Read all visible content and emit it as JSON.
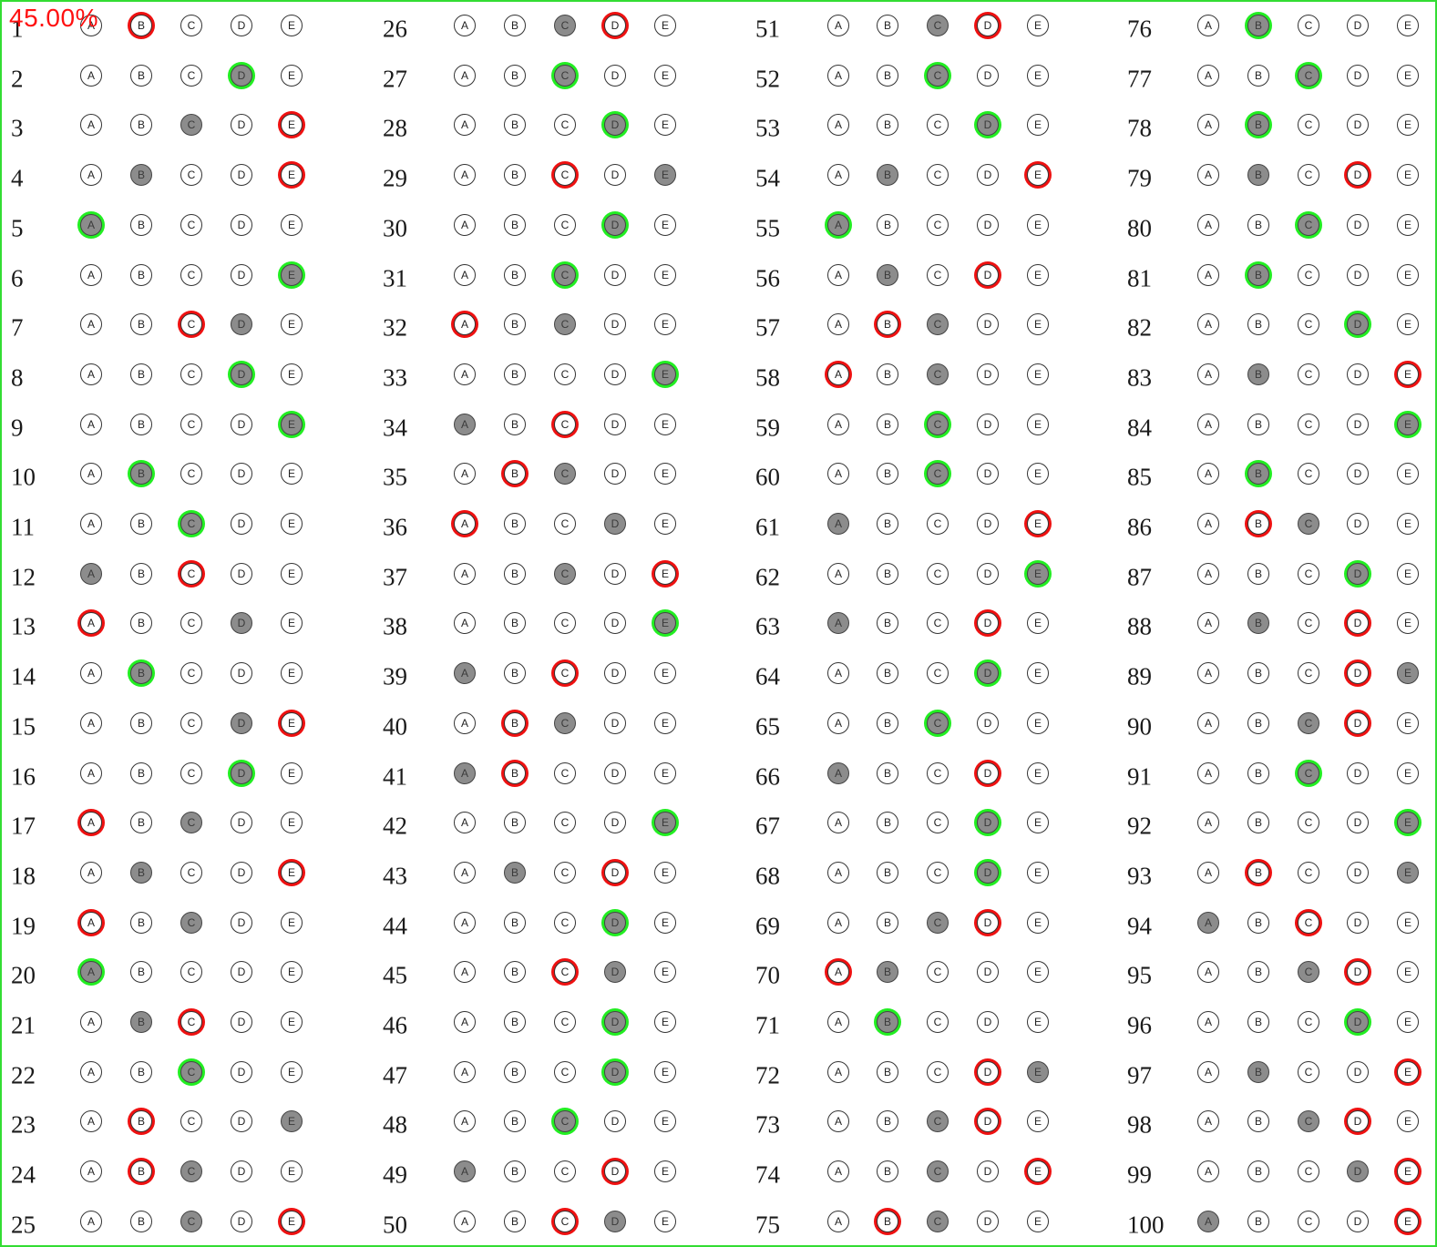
{
  "score_text": "45.00%",
  "colors": {
    "border": "#33dd33",
    "correct": "#22ee22",
    "wrong": "#ee1111",
    "filled": "#8c8c8c",
    "score": "#ff1010"
  },
  "options": [
    "A",
    "B",
    "C",
    "D",
    "E"
  ],
  "questions": [
    {
      "n": 1,
      "filled": "",
      "mark": "B",
      "status": "wrong"
    },
    {
      "n": 2,
      "filled": "D",
      "mark": "D",
      "status": "correct"
    },
    {
      "n": 3,
      "filled": "C",
      "mark": "E",
      "status": "wrong"
    },
    {
      "n": 4,
      "filled": "B",
      "mark": "E",
      "status": "wrong"
    },
    {
      "n": 5,
      "filled": "A",
      "mark": "A",
      "status": "correct"
    },
    {
      "n": 6,
      "filled": "E",
      "mark": "E",
      "status": "correct"
    },
    {
      "n": 7,
      "filled": "D",
      "mark": "C",
      "status": "wrong"
    },
    {
      "n": 8,
      "filled": "D",
      "mark": "D",
      "status": "correct"
    },
    {
      "n": 9,
      "filled": "E",
      "mark": "E",
      "status": "correct"
    },
    {
      "n": 10,
      "filled": "B",
      "mark": "B",
      "status": "correct"
    },
    {
      "n": 11,
      "filled": "C",
      "mark": "C",
      "status": "correct"
    },
    {
      "n": 12,
      "filled": "A",
      "mark": "C",
      "status": "wrong"
    },
    {
      "n": 13,
      "filled": "D",
      "mark": "A",
      "status": "wrong"
    },
    {
      "n": 14,
      "filled": "B",
      "mark": "B",
      "status": "correct"
    },
    {
      "n": 15,
      "filled": "D",
      "mark": "E",
      "status": "wrong"
    },
    {
      "n": 16,
      "filled": "D",
      "mark": "D",
      "status": "correct"
    },
    {
      "n": 17,
      "filled": "C",
      "mark": "A",
      "status": "wrong"
    },
    {
      "n": 18,
      "filled": "B",
      "mark": "E",
      "status": "wrong"
    },
    {
      "n": 19,
      "filled": "C",
      "mark": "A",
      "status": "wrong"
    },
    {
      "n": 20,
      "filled": "A",
      "mark": "A",
      "status": "correct"
    },
    {
      "n": 21,
      "filled": "B",
      "mark": "C",
      "status": "wrong"
    },
    {
      "n": 22,
      "filled": "C",
      "mark": "C",
      "status": "correct"
    },
    {
      "n": 23,
      "filled": "E",
      "mark": "B",
      "status": "wrong"
    },
    {
      "n": 24,
      "filled": "C",
      "mark": "B",
      "status": "wrong"
    },
    {
      "n": 25,
      "filled": "C",
      "mark": "E",
      "status": "wrong"
    },
    {
      "n": 26,
      "filled": "C",
      "mark": "D",
      "status": "wrong"
    },
    {
      "n": 27,
      "filled": "C",
      "mark": "C",
      "status": "correct"
    },
    {
      "n": 28,
      "filled": "D",
      "mark": "D",
      "status": "correct"
    },
    {
      "n": 29,
      "filled": "E",
      "mark": "C",
      "status": "wrong"
    },
    {
      "n": 30,
      "filled": "D",
      "mark": "D",
      "status": "correct"
    },
    {
      "n": 31,
      "filled": "C",
      "mark": "C",
      "status": "correct"
    },
    {
      "n": 32,
      "filled": "C",
      "mark": "A",
      "status": "wrong"
    },
    {
      "n": 33,
      "filled": "E",
      "mark": "E",
      "status": "correct"
    },
    {
      "n": 34,
      "filled": "A",
      "mark": "C",
      "status": "wrong"
    },
    {
      "n": 35,
      "filled": "C",
      "mark": "B",
      "status": "wrong"
    },
    {
      "n": 36,
      "filled": "D",
      "mark": "A",
      "status": "wrong"
    },
    {
      "n": 37,
      "filled": "C",
      "mark": "E",
      "status": "wrong"
    },
    {
      "n": 38,
      "filled": "E",
      "mark": "E",
      "status": "correct"
    },
    {
      "n": 39,
      "filled": "A",
      "mark": "C",
      "status": "wrong"
    },
    {
      "n": 40,
      "filled": "C",
      "mark": "B",
      "status": "wrong"
    },
    {
      "n": 41,
      "filled": "A",
      "mark": "B",
      "status": "wrong"
    },
    {
      "n": 42,
      "filled": "E",
      "mark": "E",
      "status": "correct"
    },
    {
      "n": 43,
      "filled": "B",
      "mark": "D",
      "status": "wrong"
    },
    {
      "n": 44,
      "filled": "D",
      "mark": "D",
      "status": "correct"
    },
    {
      "n": 45,
      "filled": "D",
      "mark": "C",
      "status": "wrong"
    },
    {
      "n": 46,
      "filled": "D",
      "mark": "D",
      "status": "correct"
    },
    {
      "n": 47,
      "filled": "D",
      "mark": "D",
      "status": "correct"
    },
    {
      "n": 48,
      "filled": "C",
      "mark": "C",
      "status": "correct"
    },
    {
      "n": 49,
      "filled": "A",
      "mark": "D",
      "status": "wrong"
    },
    {
      "n": 50,
      "filled": "D",
      "mark": "C",
      "status": "wrong"
    },
    {
      "n": 51,
      "filled": "C",
      "mark": "D",
      "status": "wrong"
    },
    {
      "n": 52,
      "filled": "C",
      "mark": "C",
      "status": "correct"
    },
    {
      "n": 53,
      "filled": "D",
      "mark": "D",
      "status": "correct"
    },
    {
      "n": 54,
      "filled": "B",
      "mark": "E",
      "status": "wrong"
    },
    {
      "n": 55,
      "filled": "A",
      "mark": "A",
      "status": "correct"
    },
    {
      "n": 56,
      "filled": "B",
      "mark": "D",
      "status": "wrong"
    },
    {
      "n": 57,
      "filled": "C",
      "mark": "B",
      "status": "wrong"
    },
    {
      "n": 58,
      "filled": "C",
      "mark": "A",
      "status": "wrong"
    },
    {
      "n": 59,
      "filled": "C",
      "mark": "C",
      "status": "correct"
    },
    {
      "n": 60,
      "filled": "C",
      "mark": "C",
      "status": "correct"
    },
    {
      "n": 61,
      "filled": "A",
      "mark": "E",
      "status": "wrong"
    },
    {
      "n": 62,
      "filled": "E",
      "mark": "E",
      "status": "correct"
    },
    {
      "n": 63,
      "filled": "A",
      "mark": "D",
      "status": "wrong"
    },
    {
      "n": 64,
      "filled": "D",
      "mark": "D",
      "status": "correct"
    },
    {
      "n": 65,
      "filled": "C",
      "mark": "C",
      "status": "correct"
    },
    {
      "n": 66,
      "filled": "A",
      "mark": "D",
      "status": "wrong"
    },
    {
      "n": 67,
      "filled": "D",
      "mark": "D",
      "status": "correct"
    },
    {
      "n": 68,
      "filled": "D",
      "mark": "D",
      "status": "correct"
    },
    {
      "n": 69,
      "filled": "C",
      "mark": "D",
      "status": "wrong"
    },
    {
      "n": 70,
      "filled": "B",
      "mark": "A",
      "status": "wrong"
    },
    {
      "n": 71,
      "filled": "B",
      "mark": "B",
      "status": "correct"
    },
    {
      "n": 72,
      "filled": "E",
      "mark": "D",
      "status": "wrong"
    },
    {
      "n": 73,
      "filled": "C",
      "mark": "D",
      "status": "wrong"
    },
    {
      "n": 74,
      "filled": "C",
      "mark": "E",
      "status": "wrong"
    },
    {
      "n": 75,
      "filled": "C",
      "mark": "B",
      "status": "wrong"
    },
    {
      "n": 76,
      "filled": "B",
      "mark": "B",
      "status": "correct"
    },
    {
      "n": 77,
      "filled": "C",
      "mark": "C",
      "status": "correct"
    },
    {
      "n": 78,
      "filled": "B",
      "mark": "B",
      "status": "correct"
    },
    {
      "n": 79,
      "filled": "B",
      "mark": "D",
      "status": "wrong"
    },
    {
      "n": 80,
      "filled": "C",
      "mark": "C",
      "status": "correct"
    },
    {
      "n": 81,
      "filled": "B",
      "mark": "B",
      "status": "correct"
    },
    {
      "n": 82,
      "filled": "D",
      "mark": "D",
      "status": "correct"
    },
    {
      "n": 83,
      "filled": "B",
      "mark": "E",
      "status": "wrong"
    },
    {
      "n": 84,
      "filled": "E",
      "mark": "E",
      "status": "correct"
    },
    {
      "n": 85,
      "filled": "B",
      "mark": "B",
      "status": "correct"
    },
    {
      "n": 86,
      "filled": "C",
      "mark": "B",
      "status": "wrong"
    },
    {
      "n": 87,
      "filled": "D",
      "mark": "D",
      "status": "correct"
    },
    {
      "n": 88,
      "filled": "B",
      "mark": "D",
      "status": "wrong"
    },
    {
      "n": 89,
      "filled": "E",
      "mark": "D",
      "status": "wrong"
    },
    {
      "n": 90,
      "filled": "C",
      "mark": "D",
      "status": "wrong"
    },
    {
      "n": 91,
      "filled": "C",
      "mark": "C",
      "status": "correct"
    },
    {
      "n": 92,
      "filled": "E",
      "mark": "E",
      "status": "correct"
    },
    {
      "n": 93,
      "filled": "E",
      "mark": "B",
      "status": "wrong"
    },
    {
      "n": 94,
      "filled": "A",
      "mark": "C",
      "status": "wrong"
    },
    {
      "n": 95,
      "filled": "C",
      "mark": "D",
      "status": "wrong"
    },
    {
      "n": 96,
      "filled": "D",
      "mark": "D",
      "status": "correct"
    },
    {
      "n": 97,
      "filled": "B",
      "mark": "E",
      "status": "wrong"
    },
    {
      "n": 98,
      "filled": "C",
      "mark": "D",
      "status": "wrong"
    },
    {
      "n": 99,
      "filled": "D",
      "mark": "E",
      "status": "wrong"
    },
    {
      "n": 100,
      "filled": "A",
      "mark": "E",
      "status": "wrong"
    }
  ]
}
